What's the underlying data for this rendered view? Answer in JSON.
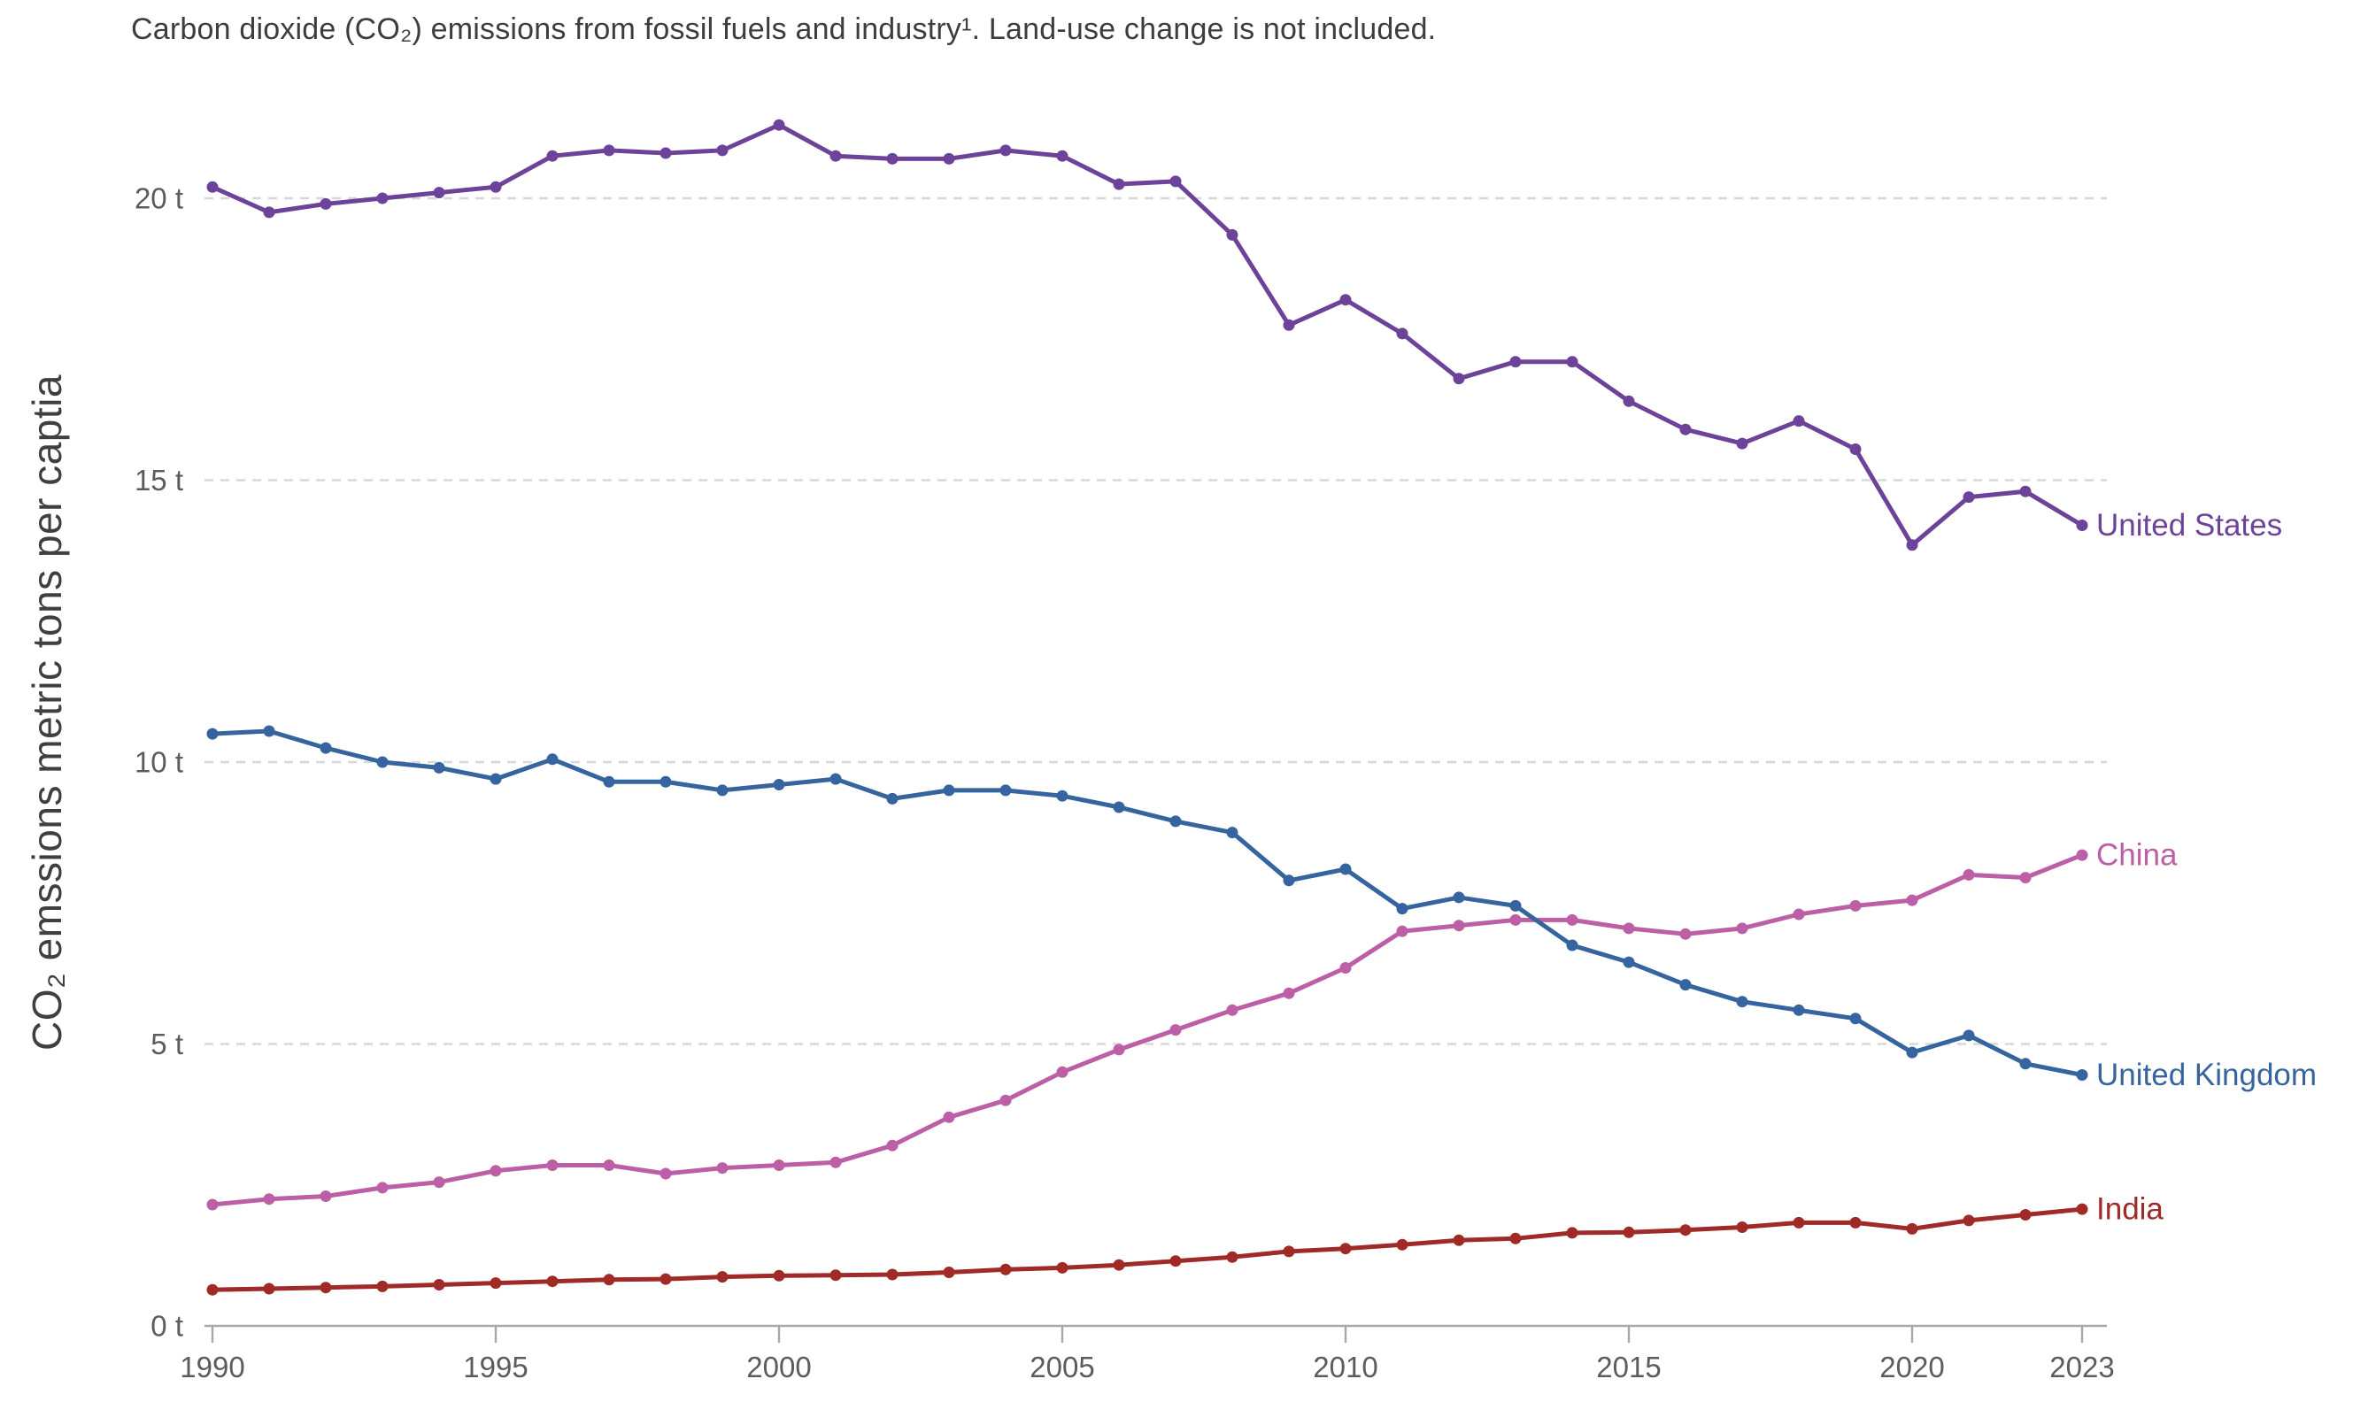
{
  "chart_data": {
    "type": "line",
    "title": "Carbon dioxide (CO₂) emissions from fossil fuels and industry¹. Land-use change is not included.",
    "ylabel": "CO₂ emssions metric tons per captia",
    "grid": "horizontal-dashed",
    "legend_position": "right-end-labels",
    "xlim": [
      1989.86,
      2023.44
    ],
    "ylim": [
      0,
      22
    ],
    "x_ticks": [
      {
        "year": 1990,
        "label": "1990"
      },
      {
        "year": 1995,
        "label": "1995"
      },
      {
        "year": 2000,
        "label": "2000"
      },
      {
        "year": 2005,
        "label": "2005"
      },
      {
        "year": 2010,
        "label": "2010"
      },
      {
        "year": 2015,
        "label": "2015"
      },
      {
        "year": 2020,
        "label": "2020"
      },
      {
        "year": 2023,
        "label": "2023"
      }
    ],
    "y_ticks": [
      {
        "value": 0,
        "label": "0 t"
      },
      {
        "value": 5,
        "label": "5 t"
      },
      {
        "value": 10,
        "label": "10 t"
      },
      {
        "value": 15,
        "label": "15 t"
      },
      {
        "value": 20,
        "label": "20 t"
      }
    ],
    "years": [
      1990,
      1991,
      1992,
      1993,
      1994,
      1995,
      1996,
      1997,
      1998,
      1999,
      2000,
      2001,
      2002,
      2003,
      2004,
      2005,
      2006,
      2007,
      2008,
      2009,
      2010,
      2011,
      2012,
      2013,
      2014,
      2015,
      2016,
      2017,
      2018,
      2019,
      2020,
      2021,
      2022,
      2023
    ],
    "series": [
      {
        "name": "United States",
        "color": "#6d4299",
        "values": [
          20.2,
          19.75,
          19.9,
          20.0,
          20.1,
          20.2,
          20.75,
          20.85,
          20.8,
          20.85,
          21.3,
          20.75,
          20.7,
          20.7,
          20.85,
          20.75,
          20.25,
          20.3,
          19.35,
          17.75,
          18.2,
          17.6,
          16.8,
          17.1,
          17.1,
          16.4,
          15.9,
          15.65,
          16.05,
          15.55,
          13.85,
          14.7,
          14.8,
          14.2
        ]
      },
      {
        "name": "China",
        "color": "#bc5fa6",
        "values": [
          2.15,
          2.25,
          2.3,
          2.45,
          2.55,
          2.75,
          2.85,
          2.85,
          2.7,
          2.8,
          2.85,
          2.9,
          3.2,
          3.7,
          4.0,
          4.5,
          4.9,
          5.25,
          5.6,
          5.9,
          6.35,
          7.0,
          7.1,
          7.2,
          7.2,
          7.05,
          6.95,
          7.05,
          7.3,
          7.45,
          7.55,
          8.0,
          7.95,
          8.35
        ]
      },
      {
        "name": "United Kingdom",
        "color": "#36649e",
        "values": [
          10.5,
          10.55,
          10.25,
          10.0,
          9.9,
          9.7,
          10.05,
          9.65,
          9.65,
          9.5,
          9.6,
          9.7,
          9.35,
          9.5,
          9.5,
          9.4,
          9.2,
          8.95,
          8.75,
          7.9,
          8.1,
          7.4,
          7.6,
          7.45,
          6.75,
          6.45,
          6.05,
          5.75,
          5.6,
          5.45,
          4.85,
          5.15,
          4.65,
          4.45
        ]
      },
      {
        "name": "India",
        "color": "#a02a27",
        "values": [
          0.64,
          0.66,
          0.68,
          0.7,
          0.73,
          0.76,
          0.79,
          0.82,
          0.83,
          0.87,
          0.89,
          0.9,
          0.91,
          0.95,
          1.0,
          1.03,
          1.08,
          1.15,
          1.22,
          1.32,
          1.37,
          1.44,
          1.52,
          1.55,
          1.65,
          1.66,
          1.7,
          1.75,
          1.83,
          1.83,
          1.72,
          1.87,
          1.97,
          2.07
        ]
      }
    ]
  }
}
